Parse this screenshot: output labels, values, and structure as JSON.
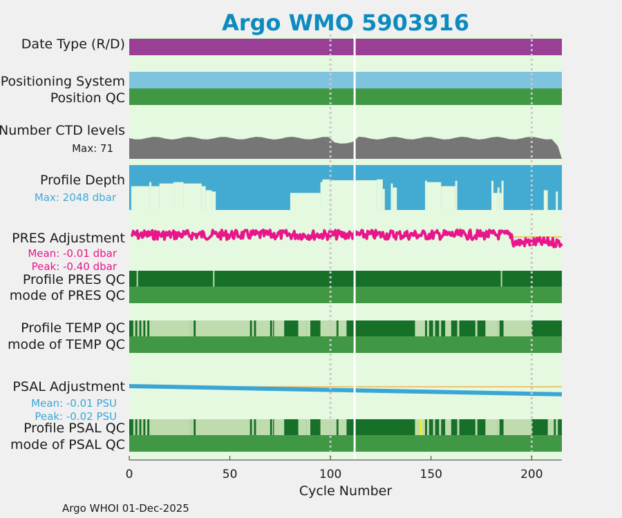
{
  "title": "Argo WMO 5903916",
  "footer": "Argo WHOI 01-Dec-2025",
  "colors": {
    "title": "#0d8bbf",
    "plot_bg": "#e5f8e0",
    "data_type": "#993f96",
    "positioning": "#7fc4de",
    "qc_mode": "#419844",
    "qc_good": "#177028",
    "qc_light": "#bfdcae",
    "qc_flag_yellow": "#f4f00e",
    "ctd_levels": "#767676",
    "profile_depth": "#43aad2",
    "pres_adjustment": "#e8158b",
    "psal_adjustment": "#3aa6d4",
    "reference_line": "#f0b24a",
    "vline": "#c8c8c8",
    "gap": "#ffffff"
  },
  "labels": {
    "date_type": "Date Type (R/D)",
    "positioning": "Positioning System",
    "position_qc": "Position QC",
    "ctd_levels": "Number CTD levels",
    "ctd_max": "Max: 71",
    "profile_depth": "Profile Depth",
    "depth_max": "Max: 2048 dbar",
    "pres_adj": "PRES Adjustment",
    "pres_mean": "Mean: -0.01 dbar",
    "pres_peak": "Peak: -0.40 dbar",
    "pres_qc": "Profile PRES QC",
    "pres_mode": "mode of PRES QC",
    "temp_qc": "Profile TEMP QC",
    "temp_mode": "mode of TEMP QC",
    "psal_adj": "PSAL Adjustment",
    "psal_mean": "Mean: -0.01 PSU",
    "psal_peak": "Peak: -0.02 PSU",
    "psal_qc": "Profile PSAL QC",
    "psal_mode": "mode of PSAL QC"
  },
  "chart_data": {
    "type": "timeline",
    "title": "Argo WMO 5903916",
    "xlabel": "Cycle Number",
    "xlim": [
      0,
      215
    ],
    "xticks": [
      0,
      50,
      100,
      150,
      200
    ],
    "gap_at_cycle": 112,
    "vlines_at_cycle": [
      100,
      200
    ],
    "tracks": {
      "date_type": "solid",
      "positioning_system": "solid",
      "position_qc": "solid",
      "ctd_levels_max": 71,
      "profile_depth_max_dbar": 2048,
      "pres_adjustment_mean_dbar": -0.01,
      "pres_adjustment_peak_dbar": -0.4,
      "psal_adjustment_mean_psu": -0.01,
      "psal_adjustment_peak_psu": -0.02
    },
    "profile_depth_segments": [
      [
        1,
        10,
        0.3
      ],
      [
        10,
        11,
        0.45
      ],
      [
        11,
        15,
        0.3
      ],
      [
        15,
        22,
        0.4
      ],
      [
        22,
        27,
        0.45
      ],
      [
        27,
        36,
        0.4
      ],
      [
        36,
        38,
        0.3
      ],
      [
        38,
        41,
        0.15
      ],
      [
        41,
        43,
        0.1
      ],
      [
        43,
        48,
        0.0
      ],
      [
        48,
        62,
        0.0
      ],
      [
        62,
        80,
        0.0
      ],
      [
        80,
        95,
        0.05
      ],
      [
        95,
        96,
        0.45
      ],
      [
        96,
        100,
        0.55
      ],
      [
        100,
        112,
        0.52
      ],
      [
        112,
        123,
        0.52
      ],
      [
        123,
        126,
        0.55
      ],
      [
        126,
        127,
        0.2
      ],
      [
        127,
        130,
        0.0
      ],
      [
        130,
        131,
        0.4
      ],
      [
        131,
        133,
        0.25
      ],
      [
        133,
        140,
        0.0
      ],
      [
        140,
        147,
        0.0
      ],
      [
        147,
        148,
        0.5
      ],
      [
        148,
        155,
        0.45
      ],
      [
        155,
        162,
        0.3
      ],
      [
        162,
        163,
        0.5
      ],
      [
        163,
        172,
        0.0
      ],
      [
        172,
        180,
        0.0
      ],
      [
        180,
        181,
        0.5
      ],
      [
        181,
        183,
        0.05
      ],
      [
        183,
        184,
        0.25
      ],
      [
        184,
        185,
        0.05
      ],
      [
        185,
        186,
        0.5
      ],
      [
        186,
        189,
        0.0
      ],
      [
        189,
        196,
        0.0
      ],
      [
        196,
        206,
        0.0
      ],
      [
        206,
        208,
        0.15
      ],
      [
        208,
        212,
        0.0
      ],
      [
        212,
        213,
        0.1
      ],
      [
        213,
        215,
        0.0
      ]
    ],
    "pres_qc_light_cycles": [
      4,
      42,
      185
    ],
    "temp_qc_light_segments": [
      [
        2,
        3
      ],
      [
        4,
        5
      ],
      [
        6,
        7
      ],
      [
        8,
        9
      ],
      [
        10,
        11
      ],
      [
        11,
        30
      ],
      [
        30,
        31
      ],
      [
        31,
        32
      ],
      [
        33,
        60
      ],
      [
        61,
        62
      ],
      [
        63,
        70
      ],
      [
        71,
        71.5
      ],
      [
        72,
        73
      ],
      [
        72,
        77
      ],
      [
        84,
        88
      ],
      [
        88,
        90
      ],
      [
        95,
        103
      ],
      [
        104,
        105
      ],
      [
        104,
        108
      ],
      [
        142,
        147
      ],
      [
        148,
        149
      ],
      [
        151,
        152
      ],
      [
        154,
        155
      ],
      [
        157,
        160
      ],
      [
        163,
        164
      ],
      [
        172,
        173
      ],
      [
        177,
        183
      ],
      [
        183,
        184
      ],
      [
        186,
        200
      ]
    ],
    "psal_qc_light_segments": [
      [
        2,
        3
      ],
      [
        4,
        5
      ],
      [
        6,
        7
      ],
      [
        8,
        9
      ],
      [
        10,
        11
      ],
      [
        11,
        30
      ],
      [
        30,
        31
      ],
      [
        31,
        32
      ],
      [
        33,
        60
      ],
      [
        61,
        62
      ],
      [
        63,
        70
      ],
      [
        71,
        71.5
      ],
      [
        72,
        73
      ],
      [
        72,
        77
      ],
      [
        84,
        88
      ],
      [
        88,
        90
      ],
      [
        95,
        103
      ],
      [
        104,
        105
      ],
      [
        104,
        108
      ],
      [
        142,
        147
      ],
      [
        148,
        149
      ],
      [
        151,
        152
      ],
      [
        154,
        155
      ],
      [
        157,
        160
      ],
      [
        163,
        164
      ],
      [
        172,
        173
      ],
      [
        177,
        183
      ],
      [
        183,
        184
      ],
      [
        186,
        200
      ],
      [
        208,
        211
      ],
      [
        212,
        213
      ]
    ],
    "psal_qc_flag_cycles": [
      145
    ],
    "psal_adjustment_line": [
      [
        0,
        0.0
      ],
      [
        112,
        -0.0075
      ],
      [
        215,
        -0.0149
      ]
    ]
  }
}
